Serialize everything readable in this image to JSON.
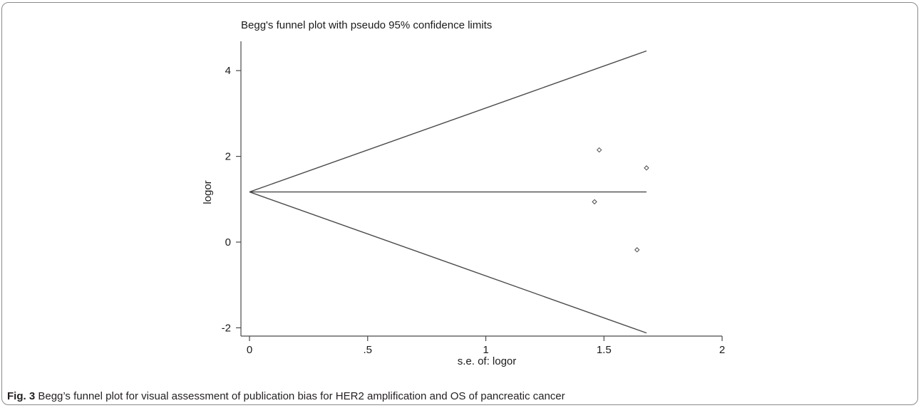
{
  "chart_data": {
    "type": "scatter",
    "title": "Begg's funnel plot with pseudo 95% confidence limits",
    "xlabel": "s.e. of: logor",
    "ylabel": "logor",
    "xlim": [
      0,
      2.05
    ],
    "ylim": [
      -2.2,
      4.75
    ],
    "xticks": [
      0,
      0.5,
      1,
      1.5,
      2
    ],
    "xtick_labels": [
      "0",
      ".5",
      "1",
      "1.5",
      "2"
    ],
    "yticks": [
      -2,
      0,
      2,
      4
    ],
    "ytick_labels": [
      "-2",
      "0",
      "2",
      "4"
    ],
    "pooled_estimate": 1.17,
    "funnel_max_se": 1.68,
    "funnel_upper_end": 4.46,
    "funnel_lower_end": -2.12,
    "points": [
      {
        "x": 1.48,
        "y": 2.15
      },
      {
        "x": 1.68,
        "y": 1.73
      },
      {
        "x": 1.46,
        "y": 0.94
      },
      {
        "x": 1.64,
        "y": -0.18
      }
    ],
    "grid": false,
    "legend": "none"
  },
  "caption": {
    "label": "Fig. 3",
    "text": "Begg’s funnel plot for visual assessment of publication bias for HER2 amplification and OS of pancreatic cancer"
  },
  "colors": {
    "line": "#4a4a4a",
    "marker": "#4a4a4a",
    "border": "#8a8a8a"
  }
}
